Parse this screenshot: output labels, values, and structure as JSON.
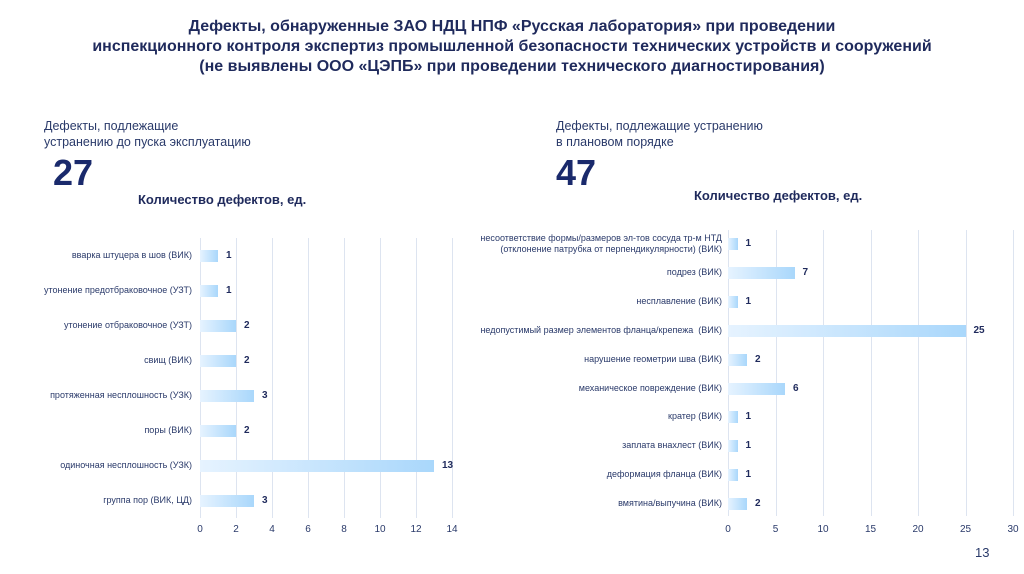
{
  "title_lines": [
    "Дефекты, обнаруженные ЗАО НДЦ НПФ «Русская лаборатория» при проведении",
    "инспекционного контроля экспертиз промышленной безопасности технических устройств и сооружений",
    "(не выявлены ООО «ЦЭПБ» при проведении технического диагностирования)"
  ],
  "left": {
    "subtitle_lines": [
      "Дефекты, подлежащие",
      "устранению до пуска эксплуатацию"
    ],
    "total": "27"
  },
  "right": {
    "subtitle_lines": [
      "Дефекты, подлежащие устранению",
      "в плановом порядке"
    ],
    "total": "47"
  },
  "page_number": "13",
  "colors": {
    "title": "#1f2a5c",
    "bar_start": "#e6f3ff",
    "bar_end": "#a9d7fb",
    "grid": "#dde4f0"
  },
  "chart_data": [
    {
      "type": "bar",
      "orientation": "horizontal",
      "title": "Количество дефектов, ед.",
      "categories": [
        "вварка штуцера в шов (ВИК)",
        "утонение предотбраковочное (УЗТ)",
        "утонение отбраковочное (УЗТ)",
        "свищ (ВИК)",
        "протяженная несплошность (УЗК)",
        "поры (ВИК)",
        "одиночная несплошность (УЗК)",
        "группа пор (ВИК, ЦД)"
      ],
      "values": [
        1,
        1,
        2,
        2,
        3,
        2,
        13,
        3
      ],
      "xlim": [
        0,
        14
      ],
      "ticks": [
        0,
        2,
        4,
        6,
        8,
        10,
        12,
        14
      ],
      "grid": true
    },
    {
      "type": "bar",
      "orientation": "horizontal",
      "title": "Количество дефектов, ед.",
      "categories": [
        "несоответствие формы/размеров эл-тов сосуда тр-м НТД\n(отклонение патрубка от перпендикулярности) (ВИК)",
        "подрез (ВИК)",
        "несплавление (ВИК)",
        "недопустимый размер элементов фланца/крепежа  (ВИК)",
        "нарушение геометрии шва (ВИК)",
        "механическое повреждение (ВИК)",
        "кратер (ВИК)",
        "заплата внахлест (ВИК)",
        "деформация фланца (ВИК)",
        "вмятина/выпучина (ВИК)"
      ],
      "values": [
        1,
        7,
        1,
        25,
        2,
        6,
        1,
        1,
        1,
        2
      ],
      "xlim": [
        0,
        30
      ],
      "ticks": [
        0,
        5,
        10,
        15,
        20,
        25,
        30
      ],
      "grid": true
    }
  ]
}
